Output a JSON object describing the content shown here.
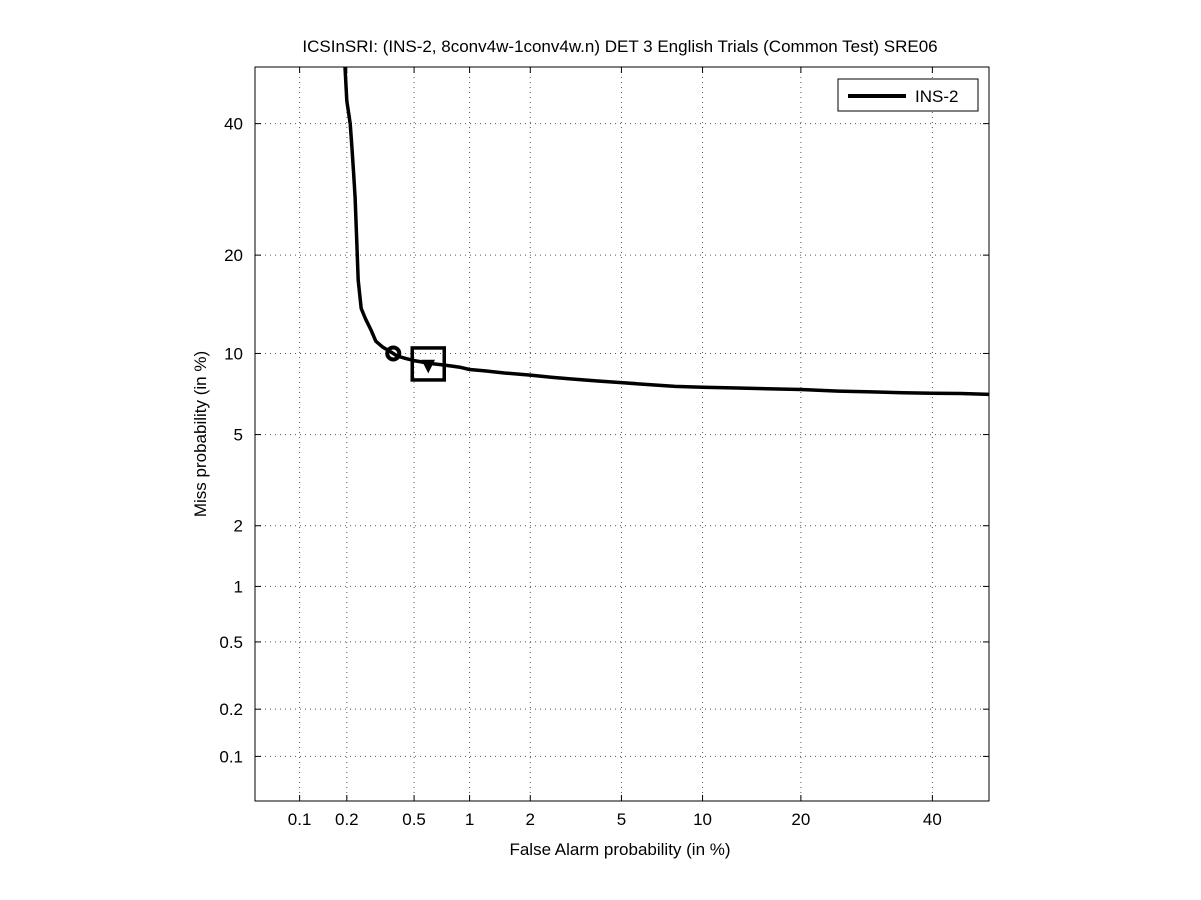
{
  "chart_data": {
    "type": "line",
    "title": "ICSInSRI: (INS-2, 8conv4w-1conv4w.n) DET 3 English Trials (Common Test) SRE06",
    "xlabel": "False Alarm probability (in %)",
    "ylabel": "Miss probability (in %)",
    "xscale": "normal-deviate (probit)",
    "yscale": "normal-deviate (probit)",
    "xlim": [
      0.05,
      50
    ],
    "ylim": [
      0.05,
      50
    ],
    "x_ticks": [
      0.1,
      0.2,
      0.5,
      1,
      2,
      5,
      10,
      20,
      40
    ],
    "x_tick_labels": [
      "0.1",
      "0.2",
      "0.5",
      "1",
      "2",
      "5",
      "10",
      "20",
      "40"
    ],
    "y_ticks": [
      0.1,
      0.2,
      0.5,
      1,
      2,
      5,
      10,
      20,
      40
    ],
    "y_tick_labels": [
      "0.1",
      "0.2",
      "0.5",
      "1",
      "2",
      "5",
      "10",
      "20",
      "40"
    ],
    "grid": true,
    "legend": {
      "placement": "top-right",
      "entries": [
        "INS-2"
      ]
    },
    "series": [
      {
        "name": "INS-2",
        "color": "#000000",
        "x": [
          0.195,
          0.2,
          0.205,
          0.21,
          0.215,
          0.22,
          0.225,
          0.23,
          0.235,
          0.245,
          0.26,
          0.28,
          0.3,
          0.33,
          0.36,
          0.38,
          0.4,
          0.45,
          0.5,
          0.55,
          0.6,
          0.7,
          0.8,
          0.9,
          1.0,
          1.2,
          1.5,
          2.0,
          2.5,
          3.0,
          4.0,
          5.0,
          6.0,
          8.0,
          10.0,
          13.0,
          16.0,
          20.0,
          25.0,
          30.0,
          35.0,
          40.0,
          45.0,
          50.0
        ],
        "y": [
          50,
          44,
          42,
          40,
          36,
          32,
          28,
          22,
          17,
          14,
          13,
          12,
          11,
          10.5,
          10.2,
          10.0,
          9.8,
          9.6,
          9.45,
          9.35,
          9.25,
          9.15,
          9.05,
          8.95,
          8.8,
          8.7,
          8.55,
          8.4,
          8.25,
          8.15,
          8.0,
          7.9,
          7.8,
          7.65,
          7.6,
          7.55,
          7.5,
          7.45,
          7.35,
          7.3,
          7.25,
          7.22,
          7.2,
          7.15
        ]
      }
    ],
    "markers": [
      {
        "type": "circle",
        "x": 0.38,
        "y": 10.0
      },
      {
        "type": "square",
        "x": 0.6,
        "y": 9.2
      },
      {
        "type": "triangle-down",
        "x": 0.6,
        "y": 9.1
      }
    ]
  }
}
